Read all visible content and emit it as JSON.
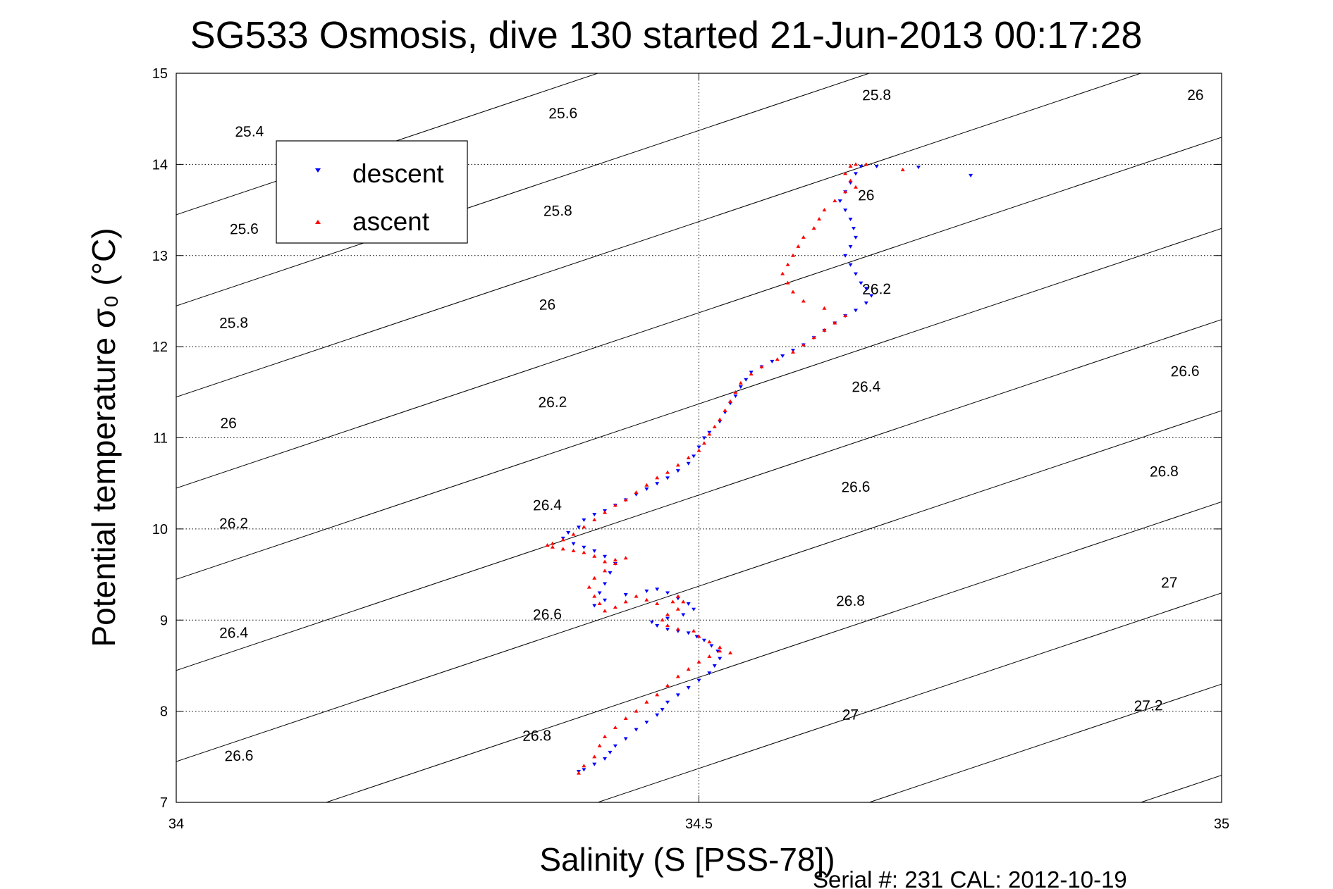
{
  "chart_data": {
    "type": "scatter",
    "title": "SG533 Osmosis, dive 130 started 21-Jun-2013 00:17:28",
    "xlabel": "Salinity (S [PSS-78])",
    "ylabel": "Potential temperature σ₀ (°C)",
    "xlim": [
      34,
      35
    ],
    "ylim": [
      7,
      15
    ],
    "xticks": [
      34,
      34.5,
      35
    ],
    "yticks": [
      7,
      8,
      9,
      10,
      11,
      12,
      13,
      14,
      15
    ],
    "xtick_labels": [
      "34",
      "34.5",
      "35"
    ],
    "ytick_labels": [
      "7",
      "8",
      "9",
      "10",
      "11",
      "12",
      "13",
      "14",
      "15"
    ],
    "grid": true,
    "legend_position": "top-left",
    "footer": "Serial #: 231  CAL: 2012-10-19",
    "series": [
      {
        "name": "descent",
        "marker": "triangle-down",
        "color": "#0000ff",
        "points": [
          [
            34.385,
            7.34
          ],
          [
            34.39,
            7.36
          ],
          [
            34.4,
            7.42
          ],
          [
            34.41,
            7.48
          ],
          [
            34.415,
            7.55
          ],
          [
            34.42,
            7.62
          ],
          [
            34.43,
            7.7
          ],
          [
            34.44,
            7.8
          ],
          [
            34.45,
            7.88
          ],
          [
            34.46,
            7.96
          ],
          [
            34.465,
            8.02
          ],
          [
            34.47,
            8.1
          ],
          [
            34.48,
            8.18
          ],
          [
            34.49,
            8.26
          ],
          [
            34.5,
            8.34
          ],
          [
            34.51,
            8.42
          ],
          [
            34.515,
            8.5
          ],
          [
            34.52,
            8.58
          ],
          [
            34.518,
            8.66
          ],
          [
            34.512,
            8.72
          ],
          [
            34.505,
            8.78
          ],
          [
            34.498,
            8.82
          ],
          [
            34.49,
            8.86
          ],
          [
            34.48,
            8.88
          ],
          [
            34.47,
            8.9
          ],
          [
            34.46,
            8.94
          ],
          [
            34.455,
            8.98
          ],
          [
            34.47,
            9.02
          ],
          [
            34.485,
            9.06
          ],
          [
            34.495,
            9.12
          ],
          [
            34.49,
            9.18
          ],
          [
            34.48,
            9.24
          ],
          [
            34.47,
            9.3
          ],
          [
            34.46,
            9.34
          ],
          [
            34.45,
            9.32
          ],
          [
            34.43,
            9.28
          ],
          [
            34.41,
            9.22
          ],
          [
            34.4,
            9.16
          ],
          [
            34.405,
            9.3
          ],
          [
            34.41,
            9.4
          ],
          [
            34.415,
            9.52
          ],
          [
            34.42,
            9.62
          ],
          [
            34.41,
            9.7
          ],
          [
            34.4,
            9.76
          ],
          [
            34.39,
            9.8
          ],
          [
            34.38,
            9.84
          ],
          [
            34.37,
            9.9
          ],
          [
            34.375,
            9.96
          ],
          [
            34.385,
            10.02
          ],
          [
            34.39,
            10.1
          ],
          [
            34.4,
            10.16
          ],
          [
            34.41,
            10.2
          ],
          [
            34.42,
            10.26
          ],
          [
            34.43,
            10.32
          ],
          [
            34.44,
            10.38
          ],
          [
            34.45,
            10.44
          ],
          [
            34.46,
            10.5
          ],
          [
            34.47,
            10.56
          ],
          [
            34.48,
            10.64
          ],
          [
            34.49,
            10.72
          ],
          [
            34.495,
            10.8
          ],
          [
            34.5,
            10.9
          ],
          [
            34.505,
            11.0
          ],
          [
            34.51,
            11.06
          ],
          [
            34.52,
            11.18
          ],
          [
            34.525,
            11.28
          ],
          [
            34.53,
            11.38
          ],
          [
            34.535,
            11.46
          ],
          [
            34.54,
            11.56
          ],
          [
            34.545,
            11.64
          ],
          [
            34.55,
            11.72
          ],
          [
            34.56,
            11.78
          ],
          [
            34.57,
            11.84
          ],
          [
            34.58,
            11.9
          ],
          [
            34.59,
            11.96
          ],
          [
            34.6,
            12.02
          ],
          [
            34.61,
            12.1
          ],
          [
            34.62,
            12.18
          ],
          [
            34.63,
            12.26
          ],
          [
            34.64,
            12.34
          ],
          [
            34.65,
            12.4
          ],
          [
            34.66,
            12.48
          ],
          [
            34.665,
            12.56
          ],
          [
            34.66,
            12.64
          ],
          [
            34.655,
            12.7
          ],
          [
            34.65,
            12.8
          ],
          [
            34.645,
            12.9
          ],
          [
            34.64,
            13.0
          ],
          [
            34.645,
            13.1
          ],
          [
            34.65,
            13.2
          ],
          [
            34.648,
            13.3
          ],
          [
            34.645,
            13.4
          ],
          [
            34.64,
            13.5
          ],
          [
            34.635,
            13.6
          ],
          [
            34.64,
            13.7
          ],
          [
            34.645,
            13.8
          ],
          [
            34.65,
            13.9
          ],
          [
            34.655,
            13.98
          ],
          [
            34.67,
            13.98
          ],
          [
            34.71,
            13.97
          ],
          [
            34.76,
            13.88
          ]
        ]
      },
      {
        "name": "ascent",
        "marker": "triangle-up",
        "color": "#ff0000",
        "points": [
          [
            34.385,
            7.32
          ],
          [
            34.39,
            7.4
          ],
          [
            34.4,
            7.5
          ],
          [
            34.405,
            7.62
          ],
          [
            34.41,
            7.72
          ],
          [
            34.42,
            7.82
          ],
          [
            34.43,
            7.92
          ],
          [
            34.44,
            8.0
          ],
          [
            34.45,
            8.1
          ],
          [
            34.46,
            8.18
          ],
          [
            34.47,
            8.28
          ],
          [
            34.48,
            8.38
          ],
          [
            34.49,
            8.46
          ],
          [
            34.5,
            8.54
          ],
          [
            34.51,
            8.6
          ],
          [
            34.52,
            8.66
          ],
          [
            34.53,
            8.64
          ],
          [
            34.52,
            8.7
          ],
          [
            34.51,
            8.76
          ],
          [
            34.5,
            8.82
          ],
          [
            34.495,
            8.88
          ],
          [
            34.48,
            8.9
          ],
          [
            34.47,
            8.94
          ],
          [
            34.465,
            9.0
          ],
          [
            34.47,
            9.06
          ],
          [
            34.48,
            9.12
          ],
          [
            34.485,
            9.2
          ],
          [
            34.48,
            9.26
          ],
          [
            34.475,
            9.2
          ],
          [
            34.46,
            9.18
          ],
          [
            34.45,
            9.22
          ],
          [
            34.44,
            9.26
          ],
          [
            34.43,
            9.2
          ],
          [
            34.42,
            9.14
          ],
          [
            34.41,
            9.1
          ],
          [
            34.405,
            9.18
          ],
          [
            34.4,
            9.26
          ],
          [
            34.395,
            9.36
          ],
          [
            34.4,
            9.46
          ],
          [
            34.41,
            9.54
          ],
          [
            34.42,
            9.62
          ],
          [
            34.43,
            9.68
          ],
          [
            34.42,
            9.66
          ],
          [
            34.41,
            9.64
          ],
          [
            34.4,
            9.7
          ],
          [
            34.39,
            9.74
          ],
          [
            34.38,
            9.76
          ],
          [
            34.37,
            9.78
          ],
          [
            34.36,
            9.8
          ],
          [
            34.355,
            9.82
          ],
          [
            34.36,
            9.84
          ],
          [
            34.37,
            9.88
          ],
          [
            34.38,
            9.94
          ],
          [
            34.39,
            10.02
          ],
          [
            34.4,
            10.1
          ],
          [
            34.41,
            10.18
          ],
          [
            34.42,
            10.26
          ],
          [
            34.43,
            10.32
          ],
          [
            34.44,
            10.4
          ],
          [
            34.45,
            10.48
          ],
          [
            34.46,
            10.56
          ],
          [
            34.47,
            10.62
          ],
          [
            34.48,
            10.7
          ],
          [
            34.49,
            10.78
          ],
          [
            34.5,
            10.86
          ],
          [
            34.505,
            10.94
          ],
          [
            34.51,
            11.04
          ],
          [
            34.515,
            11.12
          ],
          [
            34.52,
            11.2
          ],
          [
            34.525,
            11.3
          ],
          [
            34.53,
            11.4
          ],
          [
            34.535,
            11.5
          ],
          [
            34.54,
            11.6
          ],
          [
            34.55,
            11.7
          ],
          [
            34.56,
            11.78
          ],
          [
            34.575,
            11.86
          ],
          [
            34.59,
            11.94
          ],
          [
            34.6,
            12.02
          ],
          [
            34.61,
            12.1
          ],
          [
            34.62,
            12.18
          ],
          [
            34.63,
            12.26
          ],
          [
            34.64,
            12.34
          ],
          [
            34.62,
            12.42
          ],
          [
            34.6,
            12.5
          ],
          [
            34.59,
            12.6
          ],
          [
            34.585,
            12.7
          ],
          [
            34.58,
            12.8
          ],
          [
            34.585,
            12.9
          ],
          [
            34.59,
            13.0
          ],
          [
            34.595,
            13.1
          ],
          [
            34.6,
            13.2
          ],
          [
            34.61,
            13.3
          ],
          [
            34.615,
            13.4
          ],
          [
            34.62,
            13.5
          ],
          [
            34.63,
            13.6
          ],
          [
            34.64,
            13.7
          ],
          [
            34.65,
            13.75
          ],
          [
            34.645,
            13.82
          ],
          [
            34.64,
            13.9
          ],
          [
            34.645,
            13.98
          ],
          [
            34.65,
            14.0
          ],
          [
            34.66,
            14.0
          ],
          [
            34.695,
            13.94
          ]
        ]
      }
    ],
    "contour_labels": [
      {
        "text": "25.4",
        "x": 34.07,
        "y": 14.35
      },
      {
        "text": "25.6",
        "x": 34.37,
        "y": 14.55
      },
      {
        "text": "25.8",
        "x": 34.67,
        "y": 14.75
      },
      {
        "text": "26",
        "x": 34.975,
        "y": 14.75
      },
      {
        "text": "25.6",
        "x": 34.065,
        "y": 13.28
      },
      {
        "text": "25.8",
        "x": 34.365,
        "y": 13.48
      },
      {
        "text": "26",
        "x": 34.66,
        "y": 13.65
      },
      {
        "text": "25.8",
        "x": 34.055,
        "y": 12.25
      },
      {
        "text": "26",
        "x": 34.355,
        "y": 12.45
      },
      {
        "text": "26.2",
        "x": 34.67,
        "y": 12.62
      },
      {
        "text": "26",
        "x": 34.05,
        "y": 11.15
      },
      {
        "text": "26.2",
        "x": 34.36,
        "y": 11.38
      },
      {
        "text": "26.4",
        "x": 34.66,
        "y": 11.55
      },
      {
        "text": "26.6",
        "x": 34.965,
        "y": 11.72
      },
      {
        "text": "26.2",
        "x": 34.055,
        "y": 10.05
      },
      {
        "text": "26.4",
        "x": 34.355,
        "y": 10.25
      },
      {
        "text": "26.6",
        "x": 34.65,
        "y": 10.45
      },
      {
        "text": "26.8",
        "x": 34.945,
        "y": 10.62
      },
      {
        "text": "26.4",
        "x": 34.055,
        "y": 8.85
      },
      {
        "text": "26.6",
        "x": 34.355,
        "y": 9.05
      },
      {
        "text": "26.8",
        "x": 34.645,
        "y": 9.2
      },
      {
        "text": "27",
        "x": 34.95,
        "y": 9.4
      },
      {
        "text": "26.6",
        "x": 34.06,
        "y": 7.5
      },
      {
        "text": "26.8",
        "x": 34.345,
        "y": 7.72
      },
      {
        "text": "27",
        "x": 34.645,
        "y": 7.95
      },
      {
        "text": "27.2",
        "x": 34.93,
        "y": 8.05
      }
    ]
  },
  "legend": {
    "descent_label": "descent",
    "ascent_label": "ascent"
  }
}
